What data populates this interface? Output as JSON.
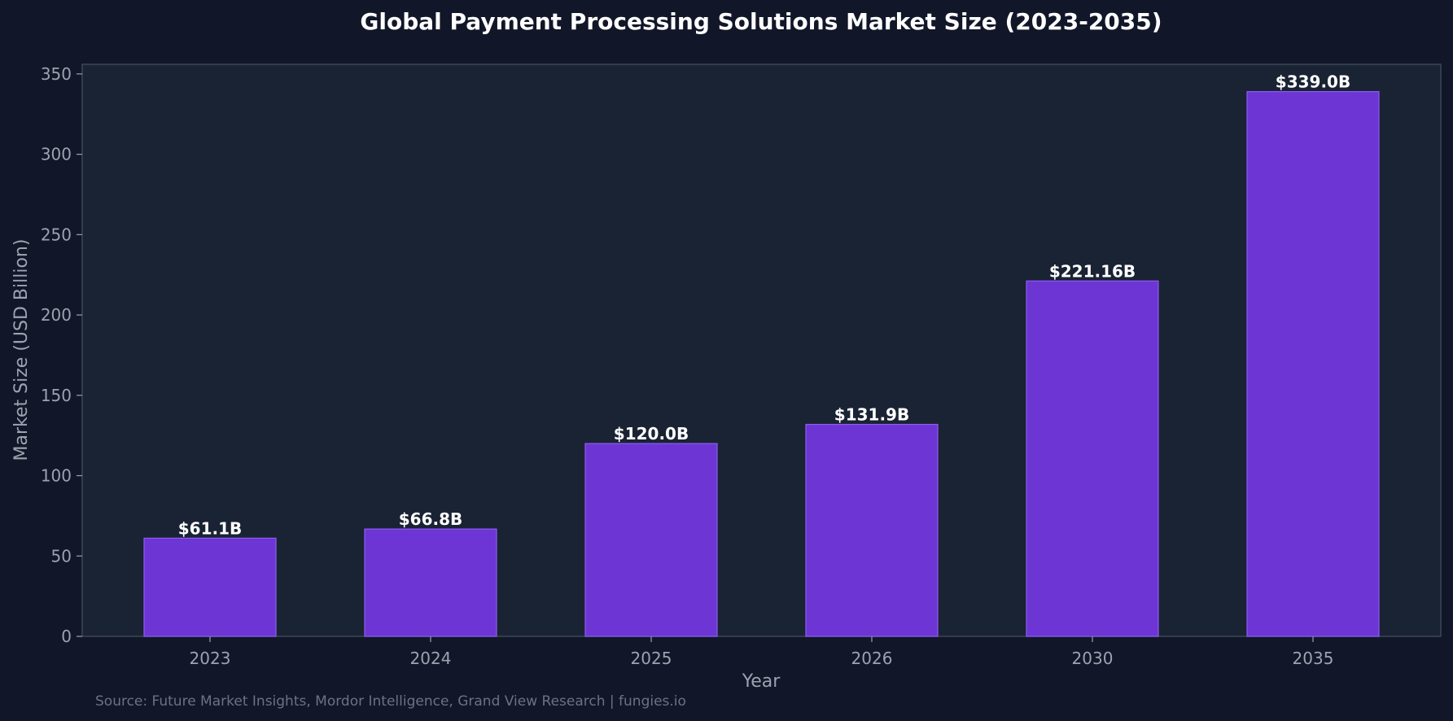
{
  "chart_data": {
    "type": "bar",
    "title": "Global Payment Processing Solutions Market Size (2023-2035)",
    "xlabel": "Year",
    "ylabel": "Market Size (USD Billion)",
    "categories": [
      "2023",
      "2024",
      "2025",
      "2026",
      "2030",
      "2035"
    ],
    "values": [
      61.1,
      66.8,
      120.0,
      131.9,
      221.16,
      339.0
    ],
    "data_labels": [
      "$61.1B",
      "$66.8B",
      "$120.0B",
      "$131.9B",
      "$221.16B",
      "$339.0B"
    ],
    "ylim": [
      0,
      356
    ],
    "yticks": [
      0,
      50,
      100,
      150,
      200,
      250,
      300,
      350
    ],
    "grid": false,
    "legend": "none",
    "source": "Source: Future Market Insights, Mordor Intelligence, Grand View Research | fungies.io"
  },
  "colors": {
    "page_background": "#111628",
    "plot_background": "#1a2333",
    "bar_fill": "#6d35d3",
    "bar_edge": "#8b5cf6",
    "axis_spine": "#3b4657",
    "tick_text": "#9ca3af",
    "title_text": "#ffffff",
    "data_label_text": "#ffffff",
    "source_text": "#6b7280"
  }
}
